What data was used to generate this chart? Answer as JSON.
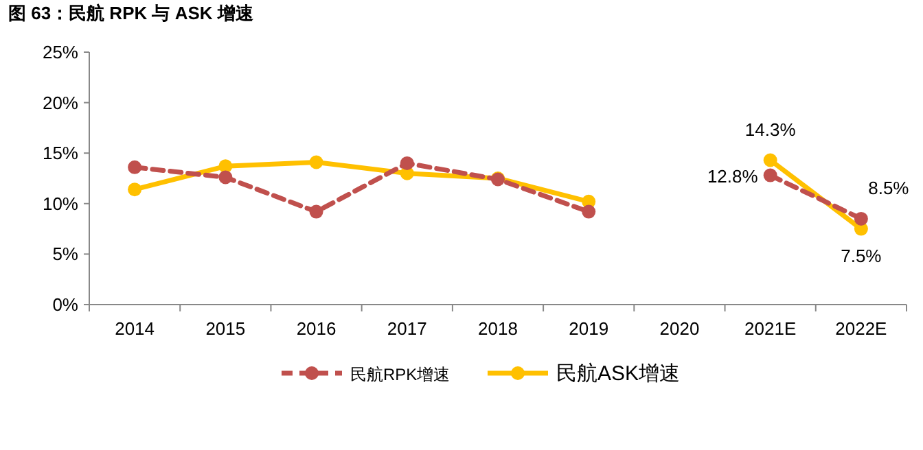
{
  "chart_data": {
    "type": "line",
    "title": "图 63：民航 RPK 与 ASK 增速",
    "categories": [
      "2014",
      "2015",
      "2016",
      "2017",
      "2018",
      "2019",
      "2020",
      "2021E",
      "2022E"
    ],
    "series": [
      {
        "name": "民航RPK增速",
        "color": "#c0504d",
        "line_style": "dashed",
        "values": [
          13.6,
          12.6,
          9.2,
          14.0,
          12.4,
          9.2,
          null,
          12.8,
          8.5
        ],
        "value_labels": [
          null,
          null,
          null,
          null,
          null,
          null,
          null,
          "12.8%",
          "8.5%"
        ]
      },
      {
        "name": "民航ASK增速",
        "color": "#ffc000",
        "line_style": "solid",
        "values": [
          11.4,
          13.7,
          14.1,
          13.0,
          12.5,
          10.2,
          null,
          14.3,
          7.5
        ],
        "value_labels": [
          null,
          null,
          null,
          null,
          null,
          null,
          null,
          "14.3%",
          "7.5%"
        ]
      }
    ],
    "ylim": [
      0,
      25
    ],
    "yticks": [
      {
        "value": 0,
        "label": "0%"
      },
      {
        "value": 5,
        "label": "5%"
      },
      {
        "value": 10,
        "label": "10%"
      },
      {
        "value": 15,
        "label": "15%"
      },
      {
        "value": 20,
        "label": "20%"
      },
      {
        "value": 25,
        "label": "25%"
      }
    ],
    "grid": false,
    "legend": "bottom",
    "marker": "circle"
  }
}
